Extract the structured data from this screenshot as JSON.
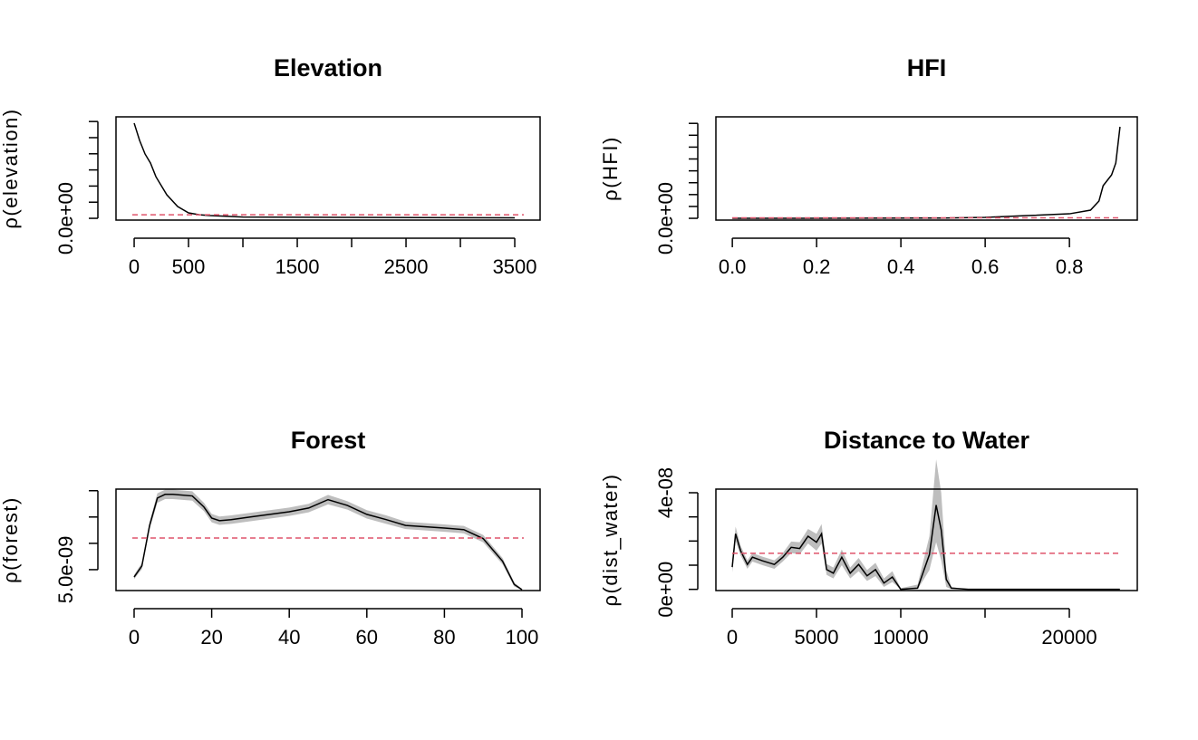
{
  "chart_data": [
    {
      "type": "line",
      "title": "Elevation",
      "ylabel": "ρ(elevation)",
      "x": [
        0,
        50,
        100,
        150,
        200,
        300,
        400,
        500,
        600,
        700,
        1000,
        2000,
        3500
      ],
      "values": [
        5.9e-07,
        4.83e-07,
        3.99e-07,
        3.43e-07,
        2.58e-07,
        1.46e-07,
        7.3e-08,
        3.4e-08,
        2.2e-08,
        1.7e-08,
        8e-09,
        6e-09,
        3e-09
      ],
      "color": "#000000",
      "reference": 2.2e-08,
      "reference_color": "#df536b",
      "xlim": [
        -167,
        3733
      ],
      "ylim": [
        -1.1e-08,
        6.29e-07
      ],
      "xticks": [
        0,
        500,
        {
          "value": 1000,
          "label": null
        },
        1500,
        {
          "value": 2000,
          "label": null
        },
        2500,
        {
          "value": 3000,
          "label": null
        },
        3500
      ],
      "yticks": [
        {
          "value": 0,
          "label": "0.0e+00"
        },
        {
          "value": 1e-07,
          "label": null
        },
        {
          "value": 2e-07,
          "label": null
        },
        {
          "value": 3e-07,
          "label": null
        },
        {
          "value": 4e-07,
          "label": null
        },
        {
          "value": 5e-07,
          "label": null
        },
        {
          "value": 6e-07,
          "label": null
        }
      ]
    },
    {
      "type": "line",
      "title": "HFI",
      "ylabel": "ρ(HFI)",
      "x": [
        0,
        0.5,
        0.6,
        0.7,
        0.8,
        0.85,
        0.87,
        0.88,
        0.9,
        0.91,
        0.92
      ],
      "values": [
        0,
        2e-09,
        8e-09,
        2.3e-08,
        3.8e-08,
        6.9e-08,
        1.45e-07,
        2.75e-07,
        3.66e-07,
        4.66e-07,
        7.71e-07
      ],
      "color": "#000000",
      "reference": 4e-09,
      "reference_color": "#df536b",
      "xlim": [
        -0.039,
        0.961
      ],
      "ylim": [
        -1.5e-08,
        8.55e-07
      ],
      "xticks": [
        {
          "value": 0,
          "label": "0.0"
        },
        0.2,
        0.4,
        0.6,
        0.8
      ],
      "yticks": [
        {
          "value": 0,
          "label": "0.0e+00"
        },
        {
          "value": 1e-07,
          "label": null
        },
        {
          "value": 2e-07,
          "label": null
        },
        {
          "value": 3e-07,
          "label": null
        },
        {
          "value": 4e-07,
          "label": null
        },
        {
          "value": 5e-07,
          "label": null
        },
        {
          "value": 6e-07,
          "label": null
        },
        {
          "value": 7e-07,
          "label": null
        },
        {
          "value": 8e-07,
          "label": null
        }
      ]
    },
    {
      "type": "line",
      "title": "Forest",
      "ylabel": "ρ(forest)",
      "x": [
        0,
        2,
        4,
        6,
        8,
        10,
        15,
        18,
        20,
        22,
        25,
        30,
        40,
        45,
        50,
        55,
        60,
        65,
        70,
        80,
        85,
        90,
        95,
        98,
        100
      ],
      "values": [
        3.6e-09,
        5.7e-09,
        1.34e-08,
        1.86e-08,
        1.93e-08,
        1.93e-08,
        1.9e-08,
        1.69e-08,
        1.48e-08,
        1.43e-08,
        1.45e-08,
        1.5e-08,
        1.6e-08,
        1.67e-08,
        1.83e-08,
        1.72e-08,
        1.55e-08,
        1.45e-08,
        1.34e-08,
        1.29e-08,
        1.26e-08,
        1.09e-08,
        6.6e-09,
        2.2e-09,
        1.2e-09
      ],
      "lower": [
        3.2e-09,
        5.1e-09,
        1.27e-08,
        1.77e-08,
        1.84e-08,
        1.84e-08,
        1.81e-08,
        1.61e-08,
        1.4e-08,
        1.35e-08,
        1.37e-08,
        1.42e-08,
        1.52e-08,
        1.59e-08,
        1.74e-08,
        1.64e-08,
        1.47e-08,
        1.37e-08,
        1.27e-08,
        1.22e-08,
        1.19e-08,
        1.02e-08,
        6e-09,
        1.8e-09,
        1.1e-09
      ],
      "upper": [
        4e-09,
        6.3e-09,
        1.41e-08,
        1.95e-08,
        2.02e-08,
        2.02e-08,
        1.99e-08,
        1.77e-08,
        1.56e-08,
        1.51e-08,
        1.53e-08,
        1.58e-08,
        1.68e-08,
        1.75e-08,
        1.92e-08,
        1.8e-08,
        1.63e-08,
        1.53e-08,
        1.41e-08,
        1.36e-08,
        1.33e-08,
        1.16e-08,
        7.2e-09,
        2.6e-09,
        1.3e-09
      ],
      "color": "#000000",
      "band_color": "#bebebe",
      "reference": 1.1e-08,
      "reference_color": "#df536b",
      "xlim": [
        -4.67,
        104.67
      ],
      "ylim": [
        1.03e-09,
        2.03e-08
      ],
      "xticks": [
        0,
        20,
        40,
        60,
        80,
        100
      ],
      "yticks": [
        {
          "value": 5e-09,
          "label": "5.0e-09"
        },
        {
          "value": 1e-08,
          "label": null
        },
        {
          "value": 1.5e-08,
          "label": null
        },
        {
          "value": 2e-08,
          "label": null
        }
      ]
    },
    {
      "type": "line",
      "title": "Distance to Water",
      "ylabel": "ρ(dist_water)",
      "x": [
        0,
        200,
        500,
        900,
        1200,
        1800,
        2500,
        3000,
        3500,
        4000,
        4500,
        5000,
        5300,
        5600,
        6000,
        6500,
        7000,
        7500,
        8000,
        8500,
        9000,
        9500,
        10000,
        11000,
        11700,
        12100,
        12400,
        12700,
        13000,
        14000,
        23000
      ],
      "values": [
        9.2e-09,
        2.3e-08,
        1.59e-08,
        1.03e-08,
        1.33e-08,
        1.18e-08,
        1.03e-08,
        1.33e-08,
        1.74e-08,
        1.69e-08,
        2.2e-08,
        1.95e-08,
        2.3e-08,
        8.2e-09,
        6.7e-09,
        1.33e-08,
        6.7e-09,
        1.03e-08,
        5.6e-09,
        8.2e-09,
        2.6e-09,
        5.1e-09,
        0,
        5e-10,
        1.44e-08,
        3.49e-08,
        2.46e-08,
        4.1e-09,
        5e-10,
        0,
        0
      ],
      "lower": [
        7e-09,
        2e-08,
        1.4e-08,
        8.5e-09,
        1.15e-08,
        1e-08,
        8.5e-09,
        1.15e-08,
        1.5e-08,
        1.45e-08,
        1.9e-08,
        1.6e-08,
        1.9e-08,
        6e-09,
        4.5e-09,
        1e-08,
        4.5e-09,
        7.5e-09,
        3.5e-09,
        5.5e-09,
        1e-09,
        3e-09,
        0,
        0,
        8e-09,
        1.95e-08,
        1.2e-08,
        1e-09,
        0,
        0,
        0
      ],
      "upper": [
        1.15e-08,
        2.6e-08,
        1.8e-08,
        1.2e-08,
        1.5e-08,
        1.35e-08,
        1.2e-08,
        1.5e-08,
        1.98e-08,
        1.95e-08,
        2.5e-08,
        2.3e-08,
        2.7e-08,
        1.05e-08,
        9e-09,
        1.65e-08,
        9e-09,
        1.3e-08,
        8e-09,
        1.1e-08,
        4.5e-09,
        7.5e-09,
        5e-10,
        2e-09,
        2.2e-08,
        5.38e-08,
        4e-08,
        8e-09,
        1e-09,
        0,
        0
      ],
      "color": "#000000",
      "band_color": "#bebebe",
      "reference": 1.49e-08,
      "reference_color": "#df536b",
      "xlim": [
        -968,
        24032
      ],
      "ylim": [
        -5e-10,
        4.15e-08
      ],
      "xticks": [
        0,
        5000,
        10000,
        {
          "value": 15000,
          "label": null
        },
        20000
      ],
      "yticks": [
        {
          "value": 0,
          "label": "0e+00"
        },
        {
          "value": 1e-08,
          "label": null
        },
        {
          "value": 2e-08,
          "label": null
        },
        {
          "value": 3e-08,
          "label": null
        },
        {
          "value": 4e-08,
          "label": "4e-08"
        }
      ]
    }
  ]
}
